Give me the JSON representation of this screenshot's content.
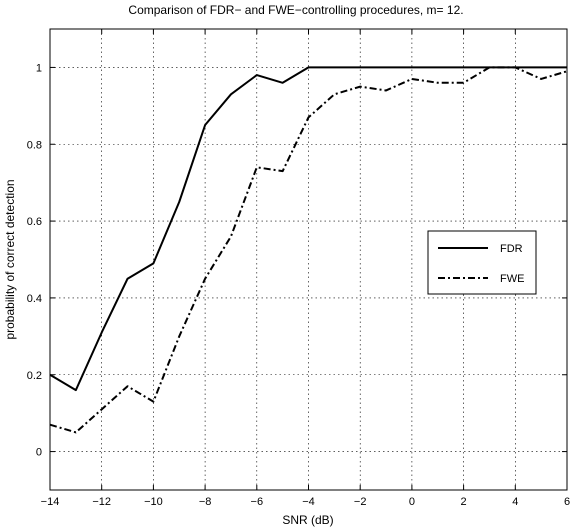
{
  "chart_data": {
    "type": "line",
    "title": "Comparison of FDR− and FWE−controlling procedures, m= 12.",
    "xlabel": "SNR (dB)",
    "ylabel": "probability of correct detection",
    "xlim": [
      -14,
      6
    ],
    "ylim": [
      -0.1,
      1.1
    ],
    "xticks": [
      -14,
      -12,
      -10,
      -8,
      -6,
      -4,
      -2,
      0,
      2,
      4,
      6
    ],
    "yticks": [
      0,
      0.2,
      0.4,
      0.6,
      0.8,
      1
    ],
    "xtick_labels": [
      "−14",
      "−12",
      "−10",
      "−8",
      "−6",
      "−4",
      "−2",
      "0",
      "2",
      "4",
      "6"
    ],
    "ytick_labels": [
      "0",
      "0.2",
      "0.4",
      "0.6",
      "0.8",
      "1"
    ],
    "grid": true,
    "legend_position": "right",
    "x": [
      -14,
      -13,
      -12,
      -11,
      -10,
      -9,
      -8,
      -7,
      -6,
      -5,
      -4,
      -3,
      -2,
      -1,
      0,
      1,
      2,
      3,
      4,
      5,
      6
    ],
    "series": [
      {
        "name": "FDR",
        "line_style": "solid",
        "color": "#000000",
        "values": [
          0.2,
          0.16,
          0.31,
          0.45,
          0.49,
          0.65,
          0.85,
          0.93,
          0.98,
          0.96,
          1.0,
          1.0,
          1.0,
          1.0,
          1.0,
          1.0,
          1.0,
          1.0,
          1.0,
          1.0,
          1.0
        ]
      },
      {
        "name": "FWE",
        "line_style": "dash-dot",
        "color": "#000000",
        "values": [
          0.07,
          0.05,
          0.11,
          0.17,
          0.13,
          0.3,
          0.45,
          0.56,
          0.74,
          0.73,
          0.87,
          0.93,
          0.95,
          0.94,
          0.97,
          0.96,
          0.96,
          1.0,
          1.0,
          0.97,
          0.99
        ]
      }
    ]
  }
}
